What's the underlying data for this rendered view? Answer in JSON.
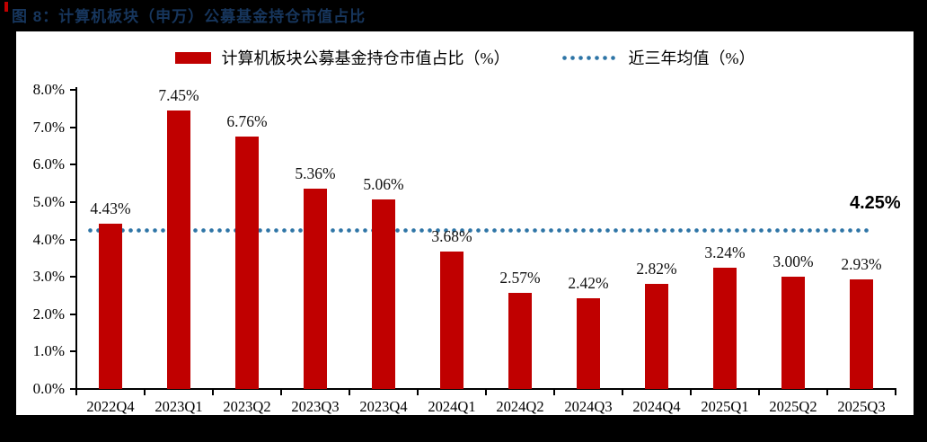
{
  "title_bar": {
    "text": "图 8：计算机板块（申万）公募基金持仓市值占比"
  },
  "chart_data": {
    "type": "bar",
    "title": "图 8：计算机板块（申万）公募基金持仓市值占比",
    "categories": [
      "2022Q4",
      "2023Q1",
      "2023Q2",
      "2023Q3",
      "2023Q4",
      "2024Q1",
      "2024Q2",
      "2024Q3",
      "2024Q4",
      "2025Q1",
      "2025Q2",
      "2025Q3"
    ],
    "values": [
      4.43,
      7.45,
      6.76,
      5.36,
      5.06,
      3.68,
      2.57,
      2.42,
      2.82,
      3.24,
      3.0,
      2.93
    ],
    "value_labels": [
      "4.43%",
      "7.45%",
      "6.76%",
      "5.36%",
      "5.06%",
      "3.68%",
      "2.57%",
      "2.42%",
      "2.82%",
      "3.24%",
      "3.00%",
      "2.93%"
    ],
    "legend": [
      {
        "label": "计算机板块公募基金持仓市值占比（%）",
        "marker": "red-bar"
      },
      {
        "label": "近三年均值（%）",
        "marker": "blue-dotted-line"
      }
    ],
    "mean_line": {
      "value": 4.25,
      "label": "4.25%"
    },
    "ylim": [
      0,
      8
    ],
    "yticks": [
      "0.0%",
      "1.0%",
      "2.0%",
      "3.0%",
      "4.0%",
      "5.0%",
      "6.0%",
      "7.0%",
      "8.0%"
    ],
    "xlabel": "",
    "ylabel": "",
    "grid": false,
    "legend_position": "top-center",
    "colors": {
      "bar": "#C00000",
      "mean_line": "#2E75A6",
      "title": "#17365D",
      "panel_background": "#FFFFFF",
      "frame_background": "#000000"
    }
  }
}
